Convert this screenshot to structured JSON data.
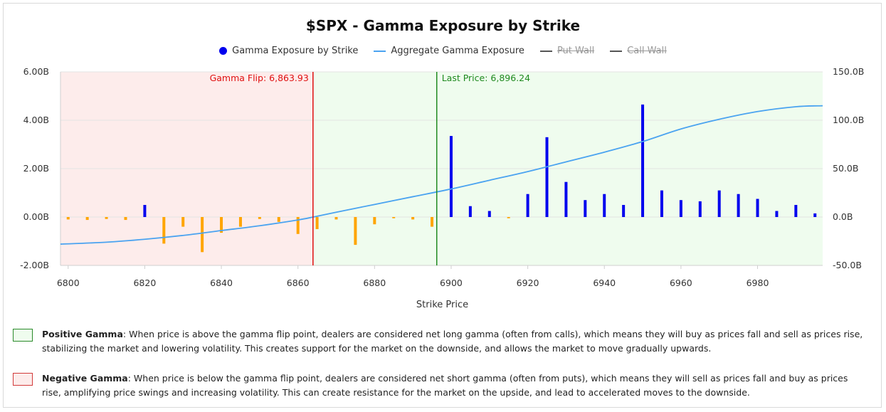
{
  "chart_data": {
    "type": "bar",
    "title": "$SPX - Gamma Exposure by Strike",
    "xlabel": "Strike Price",
    "ylabel": "",
    "xlim": [
      6798,
      6997
    ],
    "ylim": [
      -2.0,
      6.0
    ],
    "y2lim": [
      -50.0,
      150.0
    ],
    "x_ticks": [
      6800,
      6820,
      6840,
      6860,
      6880,
      6900,
      6920,
      6940,
      6960,
      6980
    ],
    "y_ticks": [
      -2.0,
      0.0,
      2.0,
      4.0,
      6.0
    ],
    "y_tick_labels": [
      "-2.00B",
      "0.00B",
      "2.00B",
      "4.00B",
      "6.00B"
    ],
    "y2_ticks": [
      -50.0,
      0.0,
      50.0,
      100.0,
      150.0
    ],
    "y2_tick_labels": [
      "-50.0B",
      "0.0B",
      "50.0B",
      "100.0B",
      "150.0B"
    ],
    "grid": true,
    "legend_position": "top-center",
    "legend": [
      {
        "label": "Gamma Exposure by Strike",
        "kind": "dot",
        "color": "#0000ee",
        "hidden": false
      },
      {
        "label": "Aggregate Gamma Exposure",
        "kind": "line",
        "color": "#4aa3f0",
        "hidden": false
      },
      {
        "label": "Put Wall",
        "kind": "line",
        "color": "#555555",
        "hidden": true
      },
      {
        "label": "Call Wall",
        "kind": "line",
        "color": "#555555",
        "hidden": true
      }
    ],
    "gamma_flip": {
      "x": 6863.93,
      "label": "Gamma Flip: 6,863.93",
      "color": "#e01010"
    },
    "last_price": {
      "x": 6896.24,
      "label": "Last Price: 6,896.24",
      "color": "#1f8a1f"
    },
    "positive_color": "#0000ee",
    "negative_color": "#ffa500",
    "negative_region_color": "#fdeceb",
    "positive_region_color": "#effcee",
    "series": [
      {
        "name": "Gamma Exposure by Strike",
        "x": [
          6800,
          6805,
          6810,
          6815,
          6820,
          6825,
          6830,
          6835,
          6840,
          6845,
          6850,
          6855,
          6860,
          6865,
          6870,
          6875,
          6880,
          6885,
          6890,
          6895,
          6900,
          6905,
          6910,
          6915,
          6920,
          6925,
          6930,
          6935,
          6940,
          6945,
          6950,
          6955,
          6960,
          6965,
          6970,
          6975,
          6980,
          6985,
          6990,
          6995
        ],
        "values": [
          -0.1,
          -0.12,
          -0.08,
          -0.12,
          0.5,
          -1.1,
          -0.4,
          -1.45,
          -0.65,
          -0.4,
          -0.08,
          -0.2,
          -0.7,
          -0.5,
          -0.1,
          -1.15,
          -0.3,
          -0.05,
          -0.1,
          -0.4,
          3.35,
          0.45,
          0.25,
          -0.05,
          0.95,
          3.3,
          1.45,
          0.7,
          0.95,
          0.5,
          4.65,
          1.1,
          0.7,
          0.65,
          1.1,
          0.95,
          0.75,
          0.25,
          0.5,
          0.15
        ]
      },
      {
        "name": "Aggregate Gamma Exposure",
        "axis": "right",
        "x": [
          6798,
          6810,
          6820,
          6830,
          6840,
          6850,
          6860,
          6864,
          6870,
          6880,
          6890,
          6900,
          6910,
          6920,
          6930,
          6940,
          6950,
          6960,
          6970,
          6980,
          6990,
          6997
        ],
        "values": [
          -28,
          -26,
          -23,
          -19,
          -14,
          -9,
          -3,
          0,
          5,
          13,
          21,
          29,
          38,
          47,
          57,
          67,
          78,
          91,
          101,
          109,
          114,
          115
        ]
      }
    ]
  },
  "notes": [
    {
      "name": "positive-gamma-note",
      "title": "Positive Gamma",
      "text": ": When price is above the gamma flip point, dealers are considered net long gamma (often from calls), which means they will buy as prices fall and sell as prices rise, stabilizing the market and lowering volatility. This creates support for the market on the downside, and allows the market to move gradually upwards.",
      "box_fill": "#effcee",
      "box_border": "#2a8a2a"
    },
    {
      "name": "negative-gamma-note",
      "title": "Negative Gamma",
      "text": ": When price is below the gamma flip point, dealers are considered net short gamma (often from puts), which means they will sell as prices fall and buy as prices rise, amplifying price swings and increasing volatility. This can create resistance for the market on the upside, and lead to accelerated moves to the downside.",
      "box_fill": "#fdeceb",
      "box_border": "#d23a3a"
    }
  ]
}
